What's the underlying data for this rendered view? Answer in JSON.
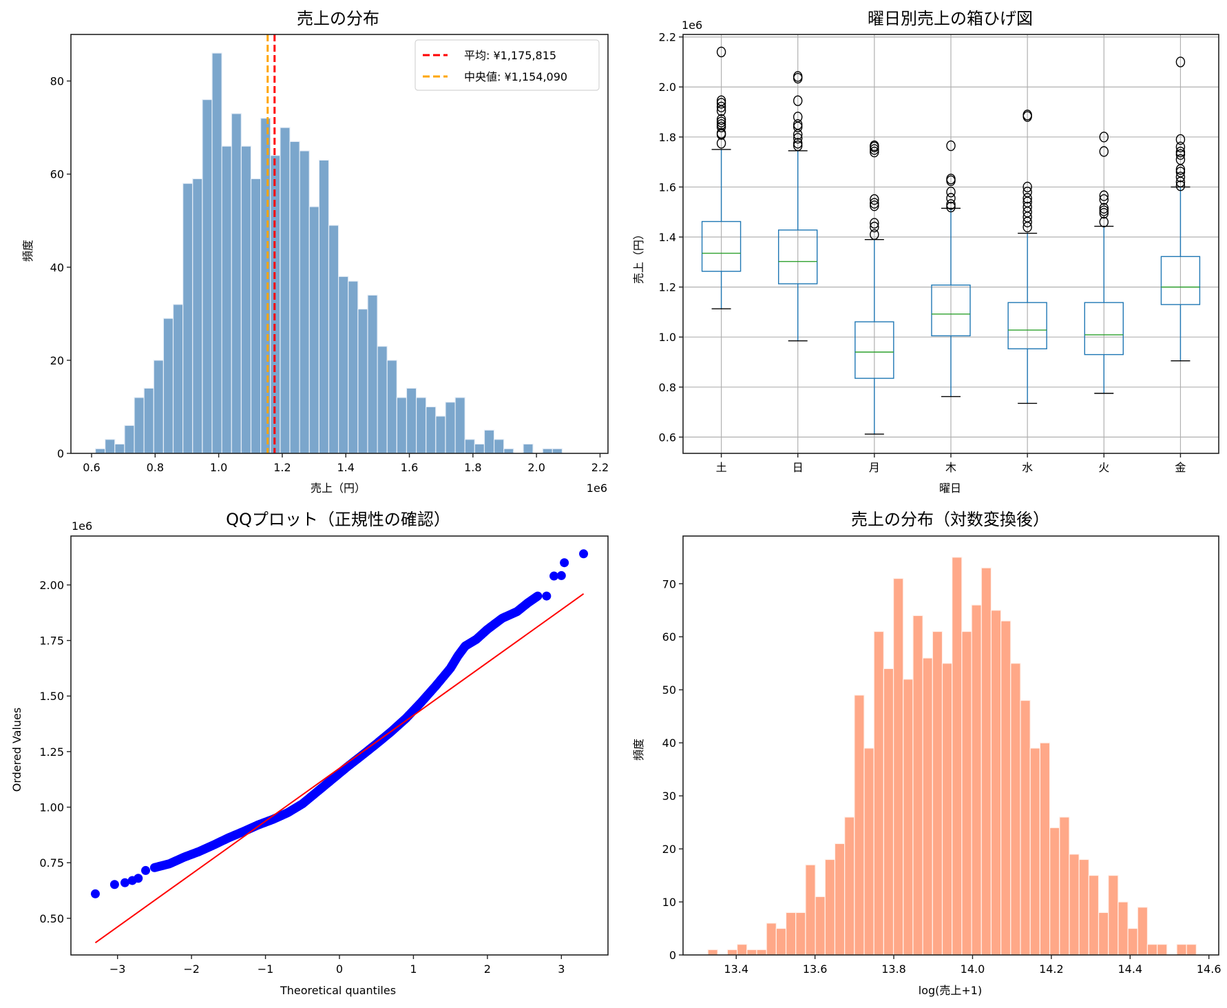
{
  "chart_data": [
    {
      "type": "bar",
      "panel": "top-left",
      "title": "売上の分布",
      "xlabel": "売上（円）",
      "ylabel": "頻度",
      "x_offset_label": "1e6",
      "xlim": [
        0.535,
        2.225
      ],
      "ylim": [
        0,
        90
      ],
      "xticks": [
        0.6,
        0.8,
        1.0,
        1.2,
        1.4,
        1.6,
        1.8,
        2.0,
        2.2
      ],
      "xtick_labels": [
        "0.6",
        "0.8",
        "1.0",
        "1.2",
        "1.4",
        "1.6",
        "1.8",
        "2.0",
        "2.2"
      ],
      "yticks": [
        0,
        20,
        40,
        60,
        80
      ],
      "bin_start": 0.612,
      "bin_width": 0.0306,
      "values": [
        1,
        3,
        2,
        6,
        12,
        14,
        20,
        29,
        32,
        58,
        59,
        76,
        86,
        66,
        73,
        66,
        59,
        72,
        64,
        70,
        67,
        65,
        53,
        63,
        49,
        38,
        37,
        31,
        34,
        23,
        20,
        12,
        14,
        12,
        10,
        8,
        11,
        12,
        3,
        2,
        5,
        3,
        1,
        0,
        2,
        0,
        1,
        1,
        0,
        0
      ],
      "color": "#7ba6cc",
      "vlines": [
        {
          "label": "平均: ¥1,175,815",
          "x": 1.175815,
          "color": "#ff0000"
        },
        {
          "label": "中央値: ¥1,154,090",
          "x": 1.15409,
          "color": "#ffa500"
        }
      ],
      "legend_position": "upper right",
      "grid": false
    },
    {
      "type": "box",
      "panel": "top-right",
      "title": "曜日別売上の箱ひげ図",
      "xlabel": "曜日",
      "ylabel": "売上（円）",
      "y_offset_label": "1e6",
      "ylim": [
        0.535,
        2.21
      ],
      "yticks": [
        0.6,
        0.8,
        1.0,
        1.2,
        1.4,
        1.6,
        1.8,
        2.0,
        2.2
      ],
      "ytick_labels": [
        "0.6",
        "0.8",
        "1.0",
        "1.2",
        "1.4",
        "1.6",
        "1.8",
        "2.0",
        "2.2"
      ],
      "categories": [
        "土",
        "日",
        "月",
        "木",
        "水",
        "火",
        "金"
      ],
      "boxes": [
        {
          "whislo": 1.113,
          "q1": 1.263,
          "med": 1.335,
          "q3": 1.462,
          "whishi": 1.75,
          "fliers": [
            1.775,
            1.81,
            1.815,
            1.84,
            1.85,
            1.86,
            1.87,
            1.905,
            1.92,
            1.935,
            1.945,
            2.14
          ]
        },
        {
          "whislo": 0.985,
          "q1": 1.213,
          "med": 1.302,
          "q3": 1.428,
          "whishi": 1.745,
          "fliers": [
            1.765,
            1.775,
            1.795,
            1.81,
            1.84,
            1.85,
            1.88,
            1.945,
            2.035,
            2.042
          ]
        },
        {
          "whislo": 0.612,
          "q1": 0.835,
          "med": 0.94,
          "q3": 1.061,
          "whishi": 1.39,
          "fliers": [
            1.41,
            1.44,
            1.455,
            1.525,
            1.535,
            1.55,
            1.74,
            1.75,
            1.76,
            1.765
          ]
        },
        {
          "whislo": 0.762,
          "q1": 1.005,
          "med": 1.092,
          "q3": 1.208,
          "whishi": 1.515,
          "fliers": [
            1.52,
            1.53,
            1.555,
            1.58,
            1.625,
            1.632,
            1.765
          ]
        },
        {
          "whislo": 0.735,
          "q1": 0.953,
          "med": 1.028,
          "q3": 1.138,
          "whishi": 1.415,
          "fliers": [
            1.44,
            1.46,
            1.48,
            1.5,
            1.52,
            1.54,
            1.555,
            1.58,
            1.6,
            1.882,
            1.888
          ]
        },
        {
          "whislo": 0.775,
          "q1": 0.93,
          "med": 1.009,
          "q3": 1.138,
          "whishi": 1.443,
          "fliers": [
            1.46,
            1.495,
            1.505,
            1.515,
            1.55,
            1.565,
            1.742,
            1.8
          ]
        },
        {
          "whislo": 0.905,
          "q1": 1.13,
          "med": 1.2,
          "q3": 1.322,
          "whishi": 1.6,
          "fliers": [
            1.605,
            1.62,
            1.64,
            1.66,
            1.67,
            1.71,
            1.73,
            1.74,
            1.76,
            1.79,
            2.1
          ]
        }
      ],
      "box_color": "#1f77b4",
      "median_color": "#2ca02c",
      "grid": true
    },
    {
      "type": "scatter",
      "panel": "bottom-left",
      "title": "QQプロット（正規性の確認）",
      "xlabel": "Theoretical quantiles",
      "ylabel": "Ordered Values",
      "y_offset_label": "1e6",
      "xlim": [
        -3.63,
        3.63
      ],
      "ylim": [
        0.335,
        2.22
      ],
      "xticks": [
        -3,
        -2,
        -1,
        0,
        1,
        2,
        3
      ],
      "xtick_labels": [
        "−3",
        "−2",
        "−1",
        "0",
        "1",
        "2",
        "3"
      ],
      "yticks": [
        0.5,
        0.75,
        1.0,
        1.25,
        1.5,
        1.75,
        2.0
      ],
      "ytick_labels": [
        "0.50",
        "0.75",
        "1.00",
        "1.25",
        "1.50",
        "1.75",
        "2.00"
      ],
      "points": [
        [
          -3.3,
          0.61
        ],
        [
          -3.04,
          0.652
        ],
        [
          -2.9,
          0.66
        ],
        [
          -2.8,
          0.67
        ],
        [
          -2.72,
          0.68
        ],
        [
          -2.62,
          0.715
        ],
        [
          -2.5,
          0.728
        ],
        [
          -2.3,
          0.745
        ],
        [
          -2.1,
          0.775
        ],
        [
          -1.9,
          0.8
        ],
        [
          -1.7,
          0.83
        ],
        [
          -1.5,
          0.862
        ],
        [
          -1.3,
          0.89
        ],
        [
          -1.1,
          0.92
        ],
        [
          -0.9,
          0.945
        ],
        [
          -0.7,
          0.975
        ],
        [
          -0.5,
          1.015
        ],
        [
          -0.3,
          1.07
        ],
        [
          -0.1,
          1.125
        ],
        [
          0.1,
          1.18
        ],
        [
          0.3,
          1.232
        ],
        [
          0.5,
          1.285
        ],
        [
          0.7,
          1.34
        ],
        [
          0.9,
          1.4
        ],
        [
          1.1,
          1.47
        ],
        [
          1.3,
          1.545
        ],
        [
          1.5,
          1.625
        ],
        [
          1.6,
          1.68
        ],
        [
          1.7,
          1.725
        ],
        [
          1.85,
          1.755
        ],
        [
          2.0,
          1.8
        ],
        [
          2.2,
          1.85
        ],
        [
          2.4,
          1.88
        ],
        [
          2.55,
          1.92
        ],
        [
          2.68,
          1.95
        ],
        [
          2.8,
          1.95
        ],
        [
          2.9,
          2.04
        ],
        [
          3.0,
          2.042
        ],
        [
          3.04,
          2.1
        ],
        [
          3.3,
          2.14
        ]
      ],
      "fit_line": {
        "x": [
          -3.3,
          3.3
        ],
        "y": [
          0.39,
          1.96
        ],
        "color": "#ff0000"
      },
      "point_color": "#0000ff",
      "grid": false
    },
    {
      "type": "bar",
      "panel": "bottom-right",
      "title": "売上の分布（対数変換後）",
      "xlabel": "log(売上+1)",
      "ylabel": "頻度",
      "xlim": [
        13.265,
        14.625
      ],
      "ylim": [
        0,
        79
      ],
      "xticks": [
        13.4,
        13.6,
        13.8,
        14.0,
        14.2,
        14.4,
        14.6
      ],
      "xtick_labels": [
        "13.4",
        "13.6",
        "13.8",
        "14.0",
        "14.2",
        "14.4",
        "14.6"
      ],
      "yticks": [
        0,
        10,
        20,
        30,
        40,
        50,
        60,
        70
      ],
      "bin_start": 13.328,
      "bin_width": 0.0248,
      "values": [
        1,
        0,
        1,
        2,
        1,
        1,
        6,
        5,
        8,
        8,
        17,
        11,
        18,
        21,
        26,
        49,
        39,
        61,
        54,
        71,
        52,
        64,
        56,
        61,
        55,
        75,
        61,
        66,
        73,
        65,
        63,
        55,
        48,
        39,
        40,
        24,
        26,
        19,
        18,
        15,
        8,
        15,
        10,
        5,
        9,
        2,
        2,
        0,
        2,
        2
      ],
      "color": "#ffa888",
      "grid": false
    }
  ]
}
